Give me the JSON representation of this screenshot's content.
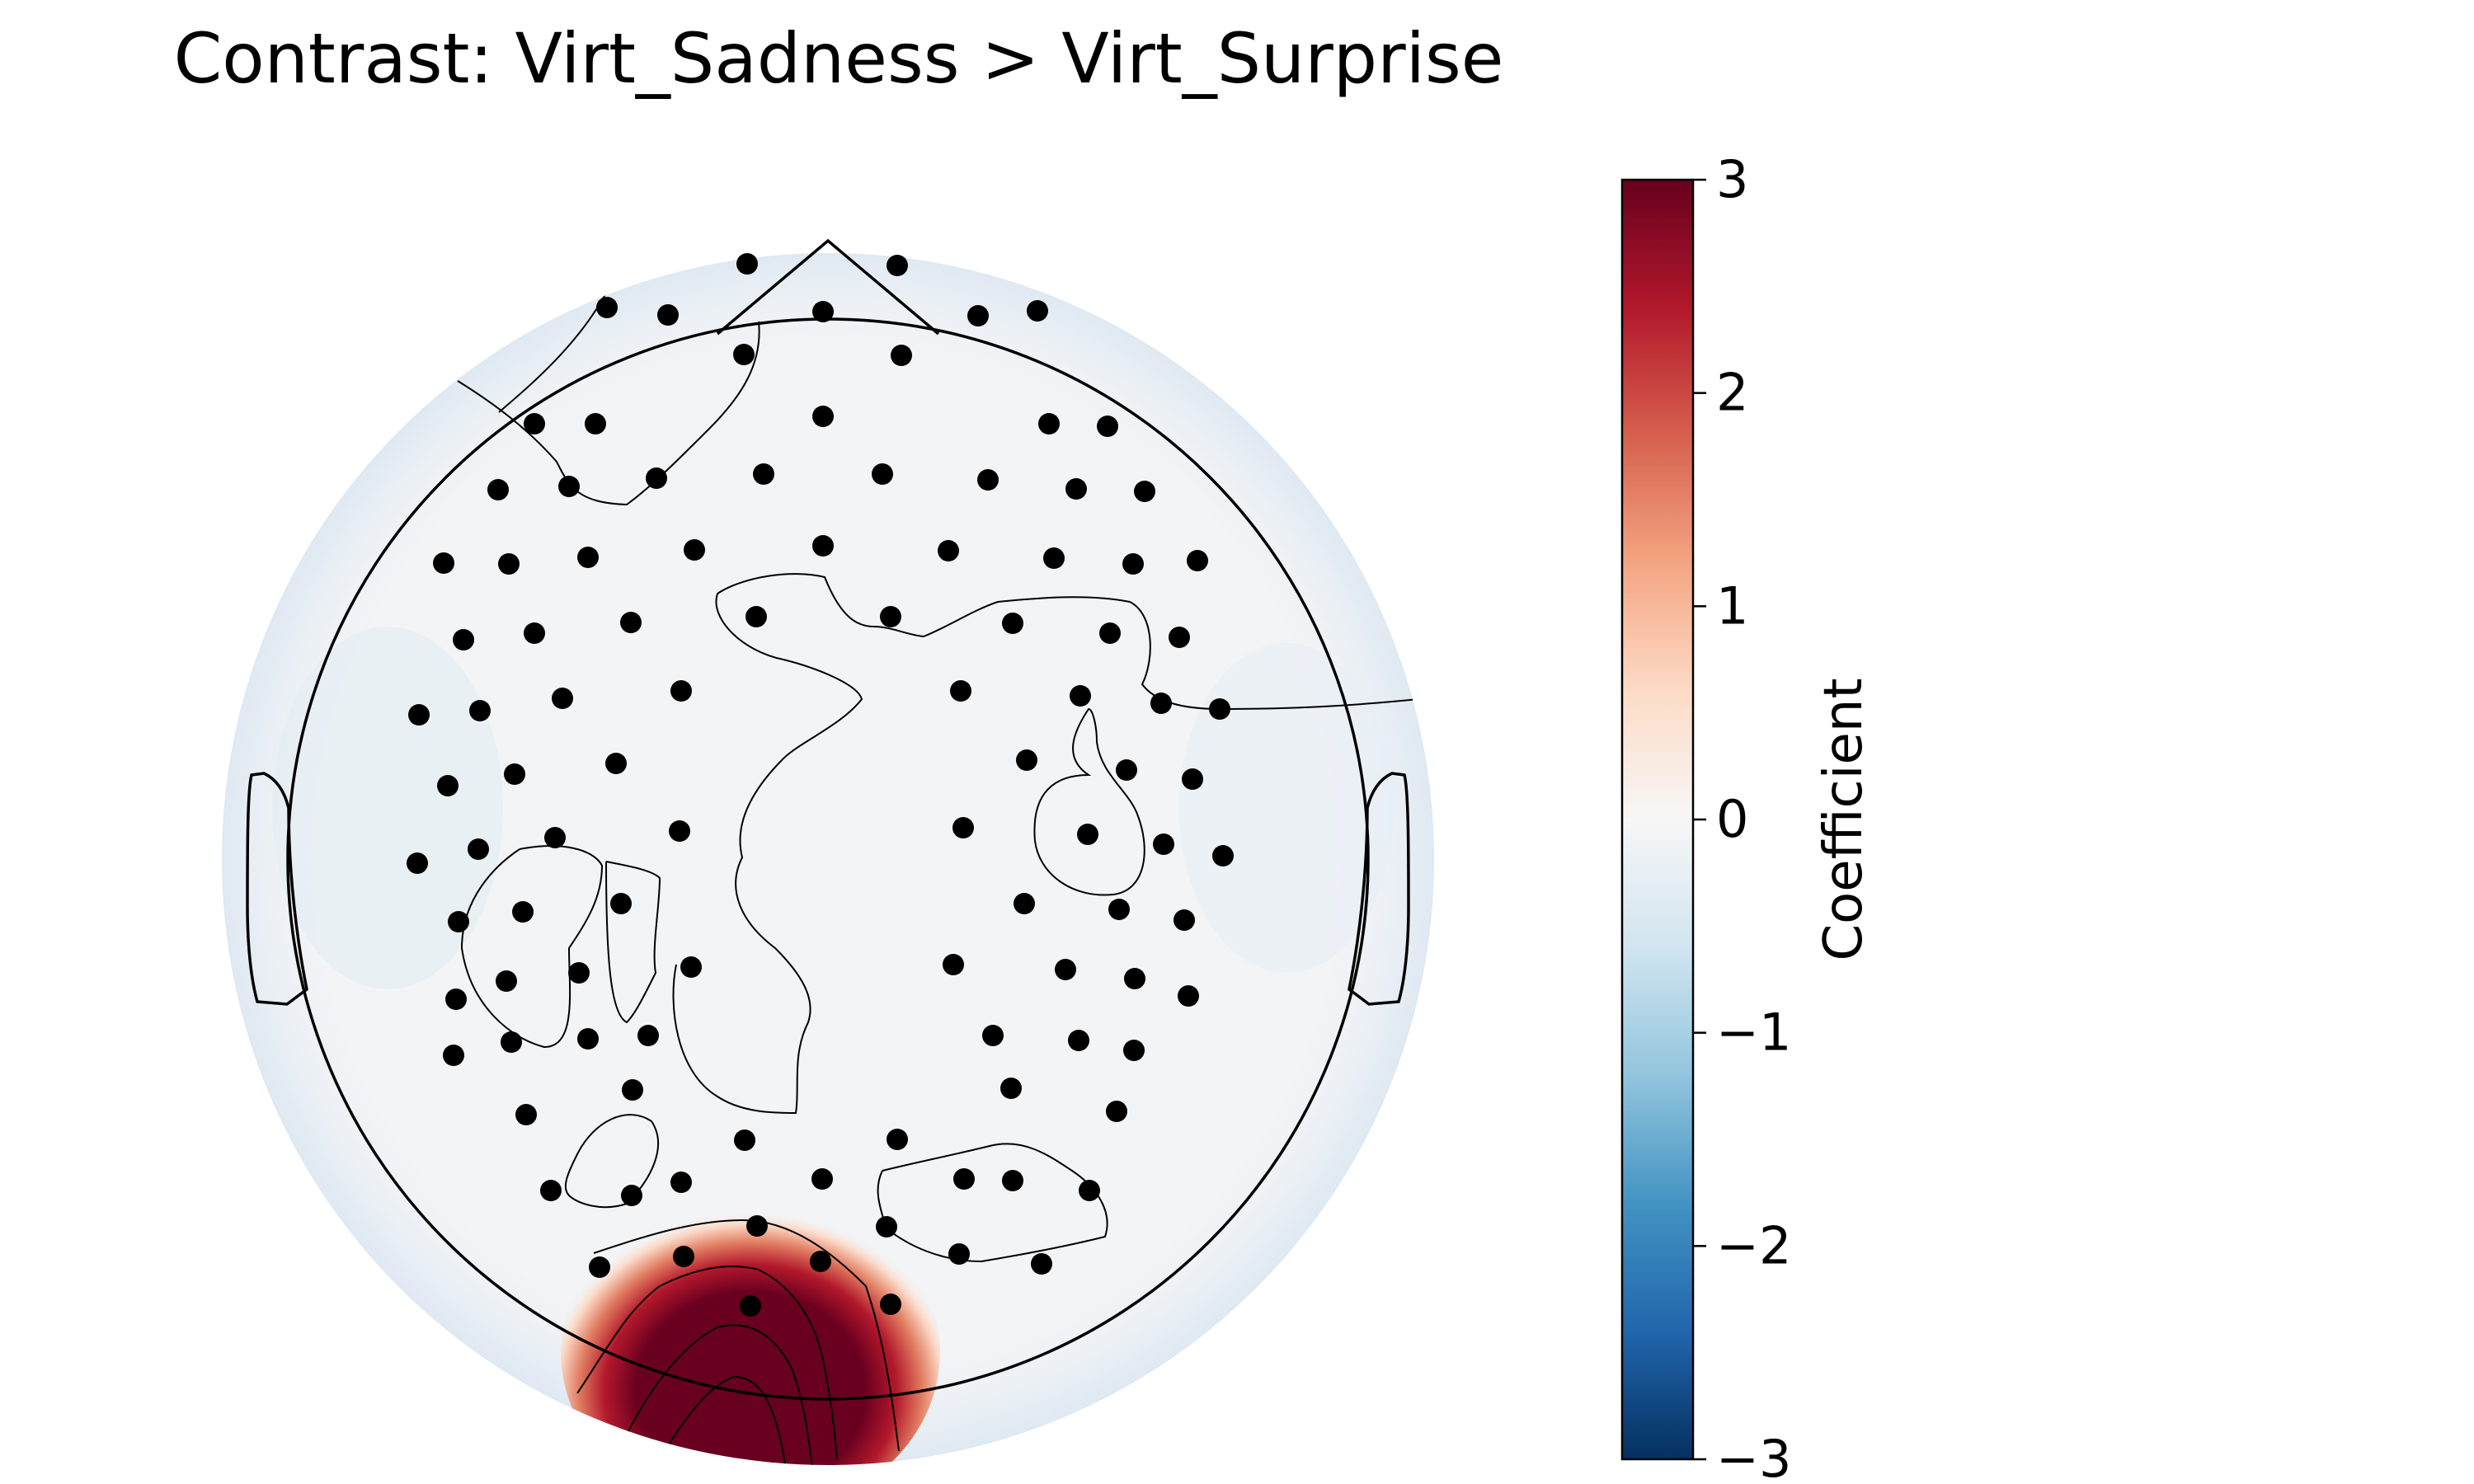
{
  "chart_data": {
    "type": "heatmap",
    "title": "Contrast: Virt_Sadness > Virt_Surprise",
    "colorbar": {
      "label": "Coefficient",
      "vmin": -3,
      "vmax": 3,
      "ticks": [
        3,
        2,
        1,
        0,
        -1,
        -2,
        -3
      ],
      "tick_labels": [
        "3",
        "2",
        "1",
        "0",
        "−1",
        "−2",
        "−3"
      ],
      "colormap": [
        "#053061",
        "#2166ac",
        "#4393c3",
        "#92c5de",
        "#d1e5f0",
        "#f7f7f7",
        "#fddbc7",
        "#f4a582",
        "#d6604d",
        "#b2182b",
        "#67001f"
      ]
    },
    "map_summary": {
      "background_value": 0,
      "peak_region": "occipital",
      "peak_value": 3
    }
  }
}
